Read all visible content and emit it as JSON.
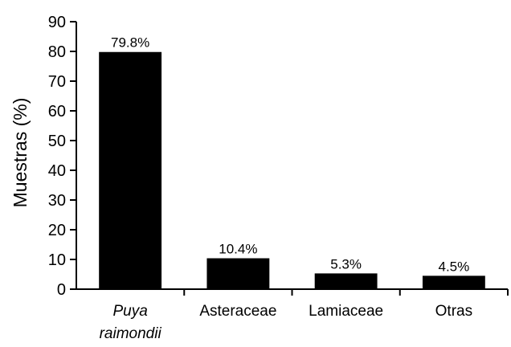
{
  "chart_data": {
    "type": "bar",
    "categories": [
      {
        "lines": [
          "Puya",
          "raimondii"
        ],
        "italic": true
      },
      {
        "lines": [
          "Asteraceae"
        ],
        "italic": false
      },
      {
        "lines": [
          "Lamiaceae"
        ],
        "italic": false
      },
      {
        "lines": [
          "Otras"
        ],
        "italic": false
      }
    ],
    "values": [
      79.8,
      10.4,
      5.3,
      4.5
    ],
    "data_labels": [
      "79.8%",
      "10.4%",
      "5.3%",
      "4.5%"
    ],
    "ylabel": "Muestras (%)",
    "xlabel": "",
    "ylim": [
      0,
      90
    ],
    "yticks": [
      0,
      10,
      20,
      30,
      40,
      50,
      60,
      70,
      80,
      90
    ],
    "bar_color": "#000000",
    "grid": false,
    "legend": "none"
  }
}
